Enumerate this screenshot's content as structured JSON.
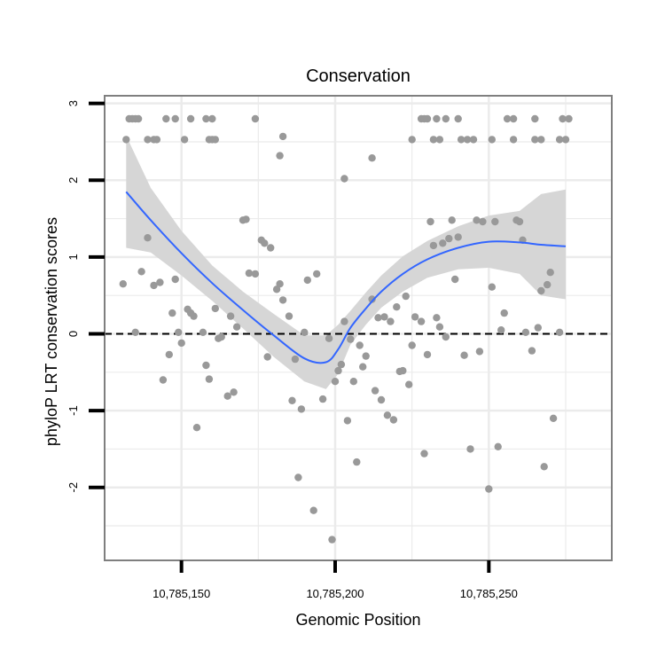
{
  "chart_data": {
    "type": "scatter",
    "title": "Conservation",
    "xlabel": "Genomic Position",
    "ylabel": "phyloP LRT conservation scores",
    "xlim": [
      10785125,
      10785290
    ],
    "ylim": [
      -2.95,
      3.1
    ],
    "grid": true,
    "x_ticks": [
      {
        "value": 10785150,
        "label": "10,785,150"
      },
      {
        "value": 10785200,
        "label": "10,785,200"
      },
      {
        "value": 10785250,
        "label": "10,785,250"
      }
    ],
    "y_ticks": [
      {
        "value": -2,
        "label": "-2"
      },
      {
        "value": -1,
        "label": "-1"
      },
      {
        "value": 0,
        "label": "0"
      },
      {
        "value": 1,
        "label": "1"
      },
      {
        "value": 2,
        "label": "2"
      },
      {
        "value": 3,
        "label": "3"
      }
    ],
    "reference_line": {
      "y": 0,
      "style": "dashed"
    },
    "colors": {
      "points": "#999999",
      "smooth": "#3366ff",
      "band": "#d6d6d6",
      "border": "#7f7f7f",
      "grid": "#ebebeb"
    },
    "points": [
      [
        10785133,
        2.8
      ],
      [
        10785134,
        2.8
      ],
      [
        10785135,
        2.8
      ],
      [
        10785136,
        2.8
      ],
      [
        10785132,
        2.53
      ],
      [
        10785139,
        2.53
      ],
      [
        10785141,
        2.53
      ],
      [
        10785142,
        2.53
      ],
      [
        10785145,
        2.8
      ],
      [
        10785148,
        2.8
      ],
      [
        10785151,
        2.53
      ],
      [
        10785153,
        2.8
      ],
      [
        10785158,
        2.8
      ],
      [
        10785160,
        2.8
      ],
      [
        10785159,
        2.53
      ],
      [
        10785160,
        2.53
      ],
      [
        10785161,
        2.53
      ],
      [
        10785174,
        2.8
      ],
      [
        10785182,
        2.32
      ],
      [
        10785183,
        2.57
      ],
      [
        10785228,
        2.8
      ],
      [
        10785229,
        2.8
      ],
      [
        10785230,
        2.8
      ],
      [
        10785233,
        2.8
      ],
      [
        10785236,
        2.8
      ],
      [
        10785240,
        2.8
      ],
      [
        10785256,
        2.8
      ],
      [
        10785258,
        2.8
      ],
      [
        10785265,
        2.8
      ],
      [
        10785274,
        2.8
      ],
      [
        10785276,
        2.8
      ],
      [
        10785225,
        2.53
      ],
      [
        10785232,
        2.53
      ],
      [
        10785234,
        2.53
      ],
      [
        10785241,
        2.53
      ],
      [
        10785243,
        2.53
      ],
      [
        10785245,
        2.53
      ],
      [
        10785251,
        2.53
      ],
      [
        10785258,
        2.53
      ],
      [
        10785265,
        2.53
      ],
      [
        10785267,
        2.53
      ],
      [
        10785273,
        2.53
      ],
      [
        10785275,
        2.53
      ],
      [
        10785203,
        2.02
      ],
      [
        10785212,
        2.29
      ],
      [
        10785131,
        0.65
      ],
      [
        10785135,
        0.02
      ],
      [
        10785137,
        0.81
      ],
      [
        10785139,
        1.25
      ],
      [
        10785141,
        0.63
      ],
      [
        10785143,
        0.67
      ],
      [
        10785144,
        -0.6
      ],
      [
        10785146,
        -0.27
      ],
      [
        10785147,
        0.27
      ],
      [
        10785148,
        0.71
      ],
      [
        10785149,
        0.02
      ],
      [
        10785150,
        -0.12
      ],
      [
        10785152,
        0.32
      ],
      [
        10785153,
        0.27
      ],
      [
        10785154,
        0.23
      ],
      [
        10785155,
        -1.22
      ],
      [
        10785157,
        0.02
      ],
      [
        10785158,
        -0.41
      ],
      [
        10785159,
        -0.59
      ],
      [
        10785161,
        0.33
      ],
      [
        10785162,
        -0.06
      ],
      [
        10785163,
        -0.04
      ],
      [
        10785165,
        -0.81
      ],
      [
        10785166,
        0.23
      ],
      [
        10785167,
        -0.76
      ],
      [
        10785168,
        0.09
      ],
      [
        10785170,
        1.48
      ],
      [
        10785171,
        1.49
      ],
      [
        10785172,
        0.79
      ],
      [
        10785174,
        0.78
      ],
      [
        10785176,
        1.22
      ],
      [
        10785177,
        1.18
      ],
      [
        10785178,
        -0.3
      ],
      [
        10785179,
        1.12
      ],
      [
        10785181,
        0.58
      ],
      [
        10785182,
        0.65
      ],
      [
        10785183,
        0.44
      ],
      [
        10785185,
        0.23
      ],
      [
        10785186,
        -0.87
      ],
      [
        10785187,
        -0.33
      ],
      [
        10785188,
        -1.87
      ],
      [
        10785189,
        -0.98
      ],
      [
        10785190,
        0.02
      ],
      [
        10785191,
        0.7
      ],
      [
        10785193,
        -2.3
      ],
      [
        10785194,
        0.78
      ],
      [
        10785196,
        -0.85
      ],
      [
        10785198,
        -0.06
      ],
      [
        10785199,
        -2.68
      ],
      [
        10785200,
        -0.62
      ],
      [
        10785201,
        -0.48
      ],
      [
        10785202,
        -0.4
      ],
      [
        10785203,
        0.16
      ],
      [
        10785204,
        -1.13
      ],
      [
        10785205,
        -0.07
      ],
      [
        10785206,
        -0.62
      ],
      [
        10785207,
        -1.67
      ],
      [
        10785208,
        -0.15
      ],
      [
        10785209,
        -0.43
      ],
      [
        10785210,
        -0.29
      ],
      [
        10785212,
        0.45
      ],
      [
        10785213,
        -0.74
      ],
      [
        10785214,
        0.21
      ],
      [
        10785215,
        -0.86
      ],
      [
        10785216,
        0.22
      ],
      [
        10785217,
        -1.06
      ],
      [
        10785218,
        0.16
      ],
      [
        10785219,
        -1.12
      ],
      [
        10785220,
        0.35
      ],
      [
        10785221,
        -0.49
      ],
      [
        10785222,
        -0.48
      ],
      [
        10785223,
        0.49
      ],
      [
        10785224,
        -0.66
      ],
      [
        10785225,
        -0.15
      ],
      [
        10785226,
        0.22
      ],
      [
        10785228,
        0.16
      ],
      [
        10785229,
        -1.56
      ],
      [
        10785230,
        -0.27
      ],
      [
        10785231,
        1.46
      ],
      [
        10785232,
        1.15
      ],
      [
        10785233,
        0.21
      ],
      [
        10785234,
        0.09
      ],
      [
        10785235,
        1.18
      ],
      [
        10785236,
        -0.04
      ],
      [
        10785237,
        1.24
      ],
      [
        10785238,
        1.48
      ],
      [
        10785239,
        0.71
      ],
      [
        10785240,
        1.26
      ],
      [
        10785242,
        -0.28
      ],
      [
        10785244,
        -1.5
      ],
      [
        10785246,
        1.48
      ],
      [
        10785247,
        -0.23
      ],
      [
        10785248,
        1.46
      ],
      [
        10785250,
        -2.02
      ],
      [
        10785251,
        0.61
      ],
      [
        10785252,
        1.46
      ],
      [
        10785253,
        -1.47
      ],
      [
        10785254,
        0.05
      ],
      [
        10785255,
        0.27
      ],
      [
        10785259,
        1.48
      ],
      [
        10785260,
        1.46
      ],
      [
        10785261,
        1.22
      ],
      [
        10785262,
        0.02
      ],
      [
        10785264,
        -0.22
      ],
      [
        10785266,
        0.08
      ],
      [
        10785267,
        0.56
      ],
      [
        10785268,
        -1.73
      ],
      [
        10785269,
        0.64
      ],
      [
        10785270,
        0.8
      ],
      [
        10785271,
        -1.1
      ],
      [
        10785273,
        0.02
      ]
    ],
    "smooth": {
      "x": [
        10785132,
        10785140,
        10785150,
        10785160,
        10785170,
        10785180,
        10785190,
        10785197,
        10785201,
        10785205,
        10785210,
        10785215,
        10785222,
        10785230,
        10785240,
        10785250,
        10785260,
        10785267,
        10785275
      ],
      "y": [
        1.85,
        1.48,
        1.05,
        0.66,
        0.31,
        -0.02,
        -0.32,
        -0.37,
        -0.2,
        0.08,
        0.33,
        0.55,
        0.78,
        0.97,
        1.12,
        1.2,
        1.19,
        1.16,
        1.14
      ],
      "lower": [
        1.12,
        1.06,
        0.76,
        0.43,
        0.07,
        -0.3,
        -0.62,
        -0.72,
        -0.52,
        -0.14,
        0.12,
        0.34,
        0.55,
        0.73,
        0.84,
        0.86,
        0.78,
        0.5,
        0.45
      ],
      "upper": [
        2.58,
        1.9,
        1.34,
        0.89,
        0.55,
        0.26,
        -0.02,
        -0.02,
        0.12,
        0.3,
        0.54,
        0.76,
        1.01,
        1.21,
        1.4,
        1.54,
        1.6,
        1.82,
        1.88
      ]
    }
  }
}
